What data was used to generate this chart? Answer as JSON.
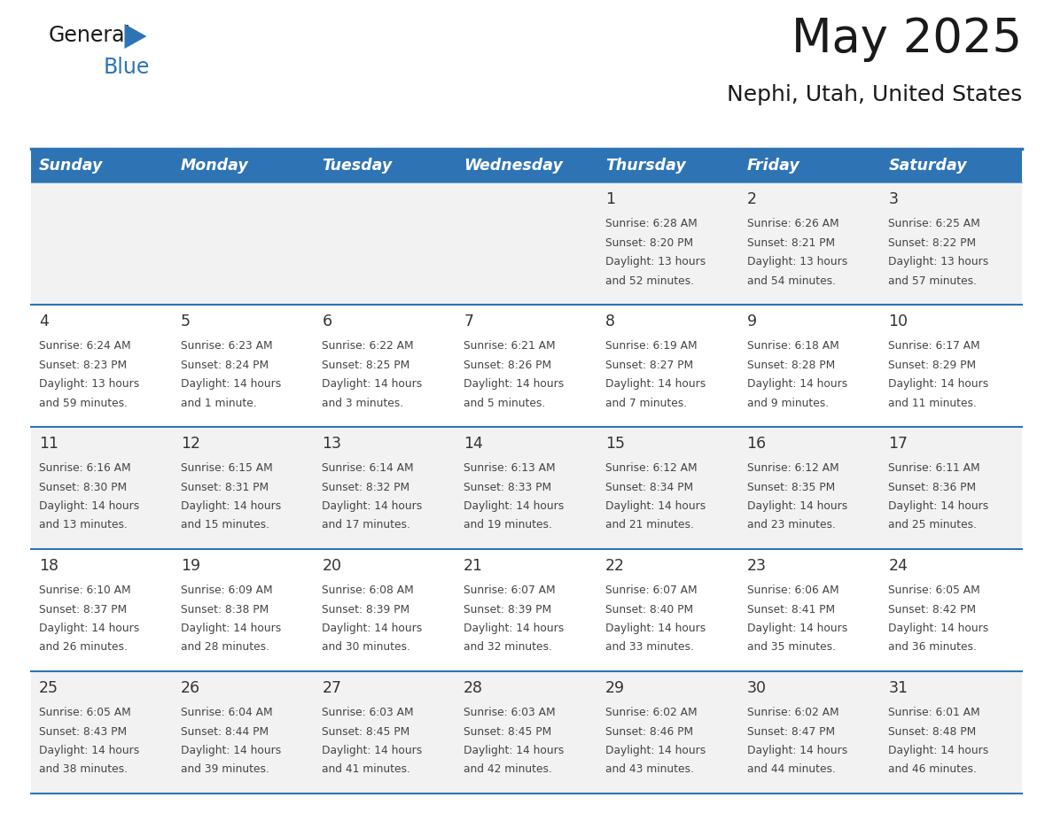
{
  "title": "May 2025",
  "subtitle": "Nephi, Utah, United States",
  "days_of_week": [
    "Sunday",
    "Monday",
    "Tuesday",
    "Wednesday",
    "Thursday",
    "Friday",
    "Saturday"
  ],
  "header_bg": "#2E74B5",
  "header_text": "#FFFFFF",
  "row_bg_even": "#F2F2F2",
  "row_bg_odd": "#FFFFFF",
  "border_color": "#2E74B5",
  "text_color": "#444444",
  "day_num_color": "#333333",
  "title_color": "#1a1a1a",
  "logo_black": "#1a1a1a",
  "logo_blue": "#2E74B5",
  "calendar": [
    [
      null,
      null,
      null,
      null,
      {
        "day": 1,
        "sunrise": "6:28 AM",
        "sunset": "8:20 PM",
        "daylight": "13 hours and 52 minutes"
      },
      {
        "day": 2,
        "sunrise": "6:26 AM",
        "sunset": "8:21 PM",
        "daylight": "13 hours and 54 minutes"
      },
      {
        "day": 3,
        "sunrise": "6:25 AM",
        "sunset": "8:22 PM",
        "daylight": "13 hours and 57 minutes"
      }
    ],
    [
      {
        "day": 4,
        "sunrise": "6:24 AM",
        "sunset": "8:23 PM",
        "daylight": "13 hours and 59 minutes"
      },
      {
        "day": 5,
        "sunrise": "6:23 AM",
        "sunset": "8:24 PM",
        "daylight": "14 hours and 1 minute"
      },
      {
        "day": 6,
        "sunrise": "6:22 AM",
        "sunset": "8:25 PM",
        "daylight": "14 hours and 3 minutes"
      },
      {
        "day": 7,
        "sunrise": "6:21 AM",
        "sunset": "8:26 PM",
        "daylight": "14 hours and 5 minutes"
      },
      {
        "day": 8,
        "sunrise": "6:19 AM",
        "sunset": "8:27 PM",
        "daylight": "14 hours and 7 minutes"
      },
      {
        "day": 9,
        "sunrise": "6:18 AM",
        "sunset": "8:28 PM",
        "daylight": "14 hours and 9 minutes"
      },
      {
        "day": 10,
        "sunrise": "6:17 AM",
        "sunset": "8:29 PM",
        "daylight": "14 hours and 11 minutes"
      }
    ],
    [
      {
        "day": 11,
        "sunrise": "6:16 AM",
        "sunset": "8:30 PM",
        "daylight": "14 hours and 13 minutes"
      },
      {
        "day": 12,
        "sunrise": "6:15 AM",
        "sunset": "8:31 PM",
        "daylight": "14 hours and 15 minutes"
      },
      {
        "day": 13,
        "sunrise": "6:14 AM",
        "sunset": "8:32 PM",
        "daylight": "14 hours and 17 minutes"
      },
      {
        "day": 14,
        "sunrise": "6:13 AM",
        "sunset": "8:33 PM",
        "daylight": "14 hours and 19 minutes"
      },
      {
        "day": 15,
        "sunrise": "6:12 AM",
        "sunset": "8:34 PM",
        "daylight": "14 hours and 21 minutes"
      },
      {
        "day": 16,
        "sunrise": "6:12 AM",
        "sunset": "8:35 PM",
        "daylight": "14 hours and 23 minutes"
      },
      {
        "day": 17,
        "sunrise": "6:11 AM",
        "sunset": "8:36 PM",
        "daylight": "14 hours and 25 minutes"
      }
    ],
    [
      {
        "day": 18,
        "sunrise": "6:10 AM",
        "sunset": "8:37 PM",
        "daylight": "14 hours and 26 minutes"
      },
      {
        "day": 19,
        "sunrise": "6:09 AM",
        "sunset": "8:38 PM",
        "daylight": "14 hours and 28 minutes"
      },
      {
        "day": 20,
        "sunrise": "6:08 AM",
        "sunset": "8:39 PM",
        "daylight": "14 hours and 30 minutes"
      },
      {
        "day": 21,
        "sunrise": "6:07 AM",
        "sunset": "8:39 PM",
        "daylight": "14 hours and 32 minutes"
      },
      {
        "day": 22,
        "sunrise": "6:07 AM",
        "sunset": "8:40 PM",
        "daylight": "14 hours and 33 minutes"
      },
      {
        "day": 23,
        "sunrise": "6:06 AM",
        "sunset": "8:41 PM",
        "daylight": "14 hours and 35 minutes"
      },
      {
        "day": 24,
        "sunrise": "6:05 AM",
        "sunset": "8:42 PM",
        "daylight": "14 hours and 36 minutes"
      }
    ],
    [
      {
        "day": 25,
        "sunrise": "6:05 AM",
        "sunset": "8:43 PM",
        "daylight": "14 hours and 38 minutes"
      },
      {
        "day": 26,
        "sunrise": "6:04 AM",
        "sunset": "8:44 PM",
        "daylight": "14 hours and 39 minutes"
      },
      {
        "day": 27,
        "sunrise": "6:03 AM",
        "sunset": "8:45 PM",
        "daylight": "14 hours and 41 minutes"
      },
      {
        "day": 28,
        "sunrise": "6:03 AM",
        "sunset": "8:45 PM",
        "daylight": "14 hours and 42 minutes"
      },
      {
        "day": 29,
        "sunrise": "6:02 AM",
        "sunset": "8:46 PM",
        "daylight": "14 hours and 43 minutes"
      },
      {
        "day": 30,
        "sunrise": "6:02 AM",
        "sunset": "8:47 PM",
        "daylight": "14 hours and 44 minutes"
      },
      {
        "day": 31,
        "sunrise": "6:01 AM",
        "sunset": "8:48 PM",
        "daylight": "14 hours and 46 minutes"
      }
    ]
  ]
}
